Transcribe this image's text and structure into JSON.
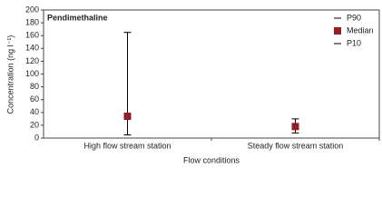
{
  "chart_data": {
    "type": "range",
    "title": "Pendimethaline",
    "x_label": "Flow conditions",
    "y_label": "Concentration (ng l⁻¹)",
    "categories": [
      "High flow stream station",
      "Steady flow stream station"
    ],
    "series": [
      {
        "name": "P90",
        "color": "#000000",
        "values": [
          165,
          30
        ]
      },
      {
        "name": "Median",
        "color": "#9b1b22",
        "values": [
          34,
          18
        ]
      },
      {
        "name": "P10",
        "color": "#000000",
        "values": [
          5,
          8
        ]
      }
    ],
    "ylim": [
      0,
      200
    ],
    "yticks": [
      0,
      20,
      40,
      60,
      80,
      100,
      120,
      140,
      160,
      180,
      200
    ],
    "legend": "upper right"
  }
}
